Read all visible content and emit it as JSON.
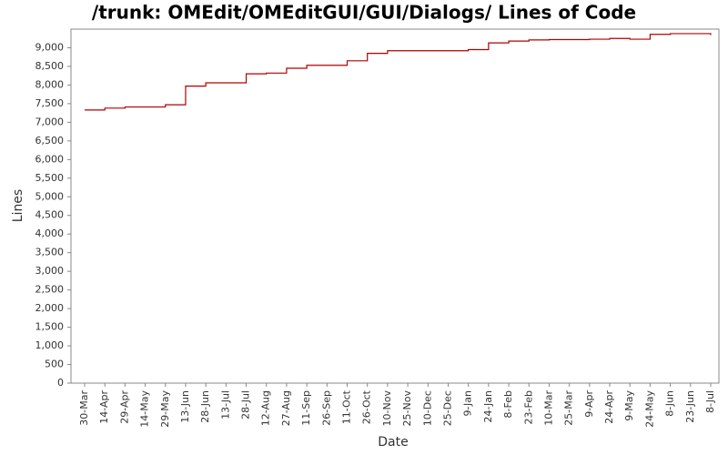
{
  "chart_data": {
    "type": "line",
    "title": "/trunk: OMEdit/OMEditGUI/GUI/Dialogs/ Lines of Code",
    "x_label": "Date",
    "y_label": "Lines",
    "categories": [
      "30-Mar",
      "14-Apr",
      "29-Apr",
      "14-May",
      "29-May",
      "13-Jun",
      "28-Jun",
      "13-Jul",
      "28-Jul",
      "12-Aug",
      "27-Aug",
      "11-Sep",
      "26-Sep",
      "11-Oct",
      "26-Oct",
      "10-Nov",
      "25-Nov",
      "10-Dec",
      "25-Dec",
      "9-Jan",
      "24-Jan",
      "8-Feb",
      "23-Feb",
      "10-Mar",
      "25-Mar",
      "9-Apr",
      "24-Apr",
      "9-May",
      "24-May",
      "8-Jun",
      "23-Jun",
      "8-Jul"
    ],
    "values": [
      7330,
      7380,
      7410,
      7410,
      7470,
      7970,
      8060,
      8060,
      8300,
      8320,
      8450,
      8530,
      8530,
      8650,
      8850,
      8920,
      8920,
      8920,
      8920,
      8950,
      9130,
      9180,
      9210,
      9220,
      9220,
      9230,
      9250,
      9230,
      9360,
      9380,
      9380,
      9340
    ],
    "color": "#b00000",
    "step": true,
    "ylim": [
      0,
      9500
    ],
    "yticks": [
      0,
      500,
      {
        "value": 1000,
        "label": "1,000"
      },
      {
        "value": 1500,
        "label": "1,500"
      },
      {
        "value": 2000,
        "label": "2,000"
      },
      {
        "value": 2500,
        "label": "2,500"
      },
      {
        "value": 3000,
        "label": "3,000"
      },
      {
        "value": 3500,
        "label": "3,500"
      },
      {
        "value": 4000,
        "label": "4,000"
      },
      {
        "value": 4500,
        "label": "4,500"
      },
      {
        "value": 5000,
        "label": "5,000"
      },
      {
        "value": 5500,
        "label": "5,500"
      },
      {
        "value": 6000,
        "label": "6,000"
      },
      {
        "value": 6500,
        "label": "6,500"
      },
      {
        "value": 7000,
        "label": "7,000"
      },
      {
        "value": 7500,
        "label": "7,500"
      },
      {
        "value": 8000,
        "label": "8,000"
      },
      {
        "value": 8500,
        "label": "8,500"
      },
      {
        "value": 9000,
        "label": "9,000"
      }
    ],
    "grid": false
  }
}
